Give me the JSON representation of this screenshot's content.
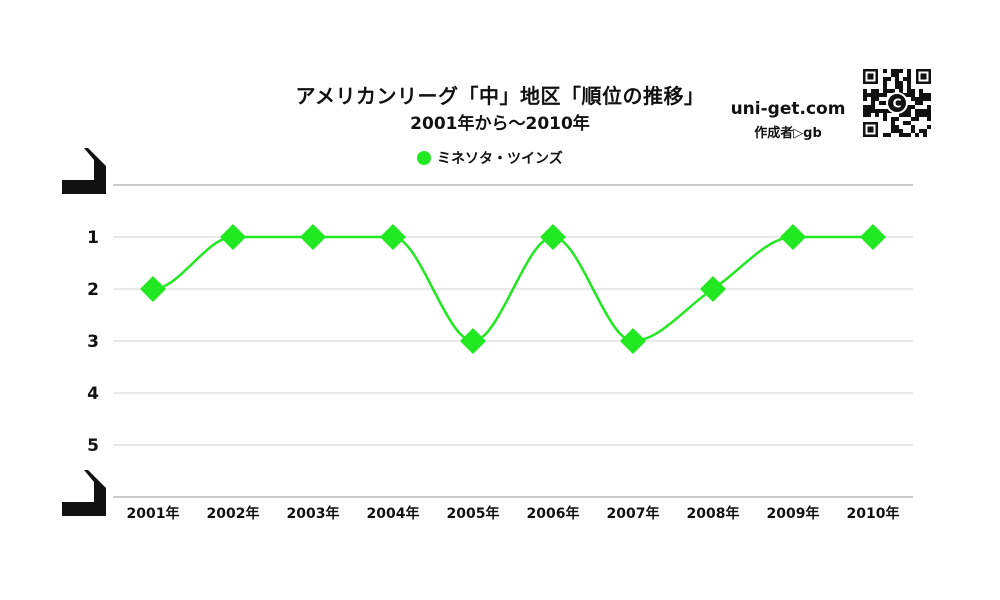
{
  "chart_data": {
    "type": "line",
    "title": "アメリカンリーグ「中」地区「順位の推移」",
    "subtitle": "2001年から～2010年",
    "categories": [
      "2001年",
      "2002年",
      "2003年",
      "2004年",
      "2005年",
      "2006年",
      "2007年",
      "2008年",
      "2009年",
      "2010年"
    ],
    "series": [
      {
        "name": "ミネソタ・ツインズ",
        "values": [
          2,
          1,
          1,
          1,
          3,
          1,
          3,
          2,
          1,
          1
        ],
        "color": "#22e822",
        "marker": "diamond"
      }
    ],
    "y_ticks": [
      "1",
      "2",
      "3",
      "4",
      "5"
    ],
    "ylim": [
      0,
      6
    ],
    "y_inverted": true,
    "grid": true,
    "legend_position": "top-center",
    "curve": "smooth"
  },
  "branding": {
    "site": "uni-get.com",
    "author": "作成者▷gb",
    "qr_badge_letter": "C"
  }
}
